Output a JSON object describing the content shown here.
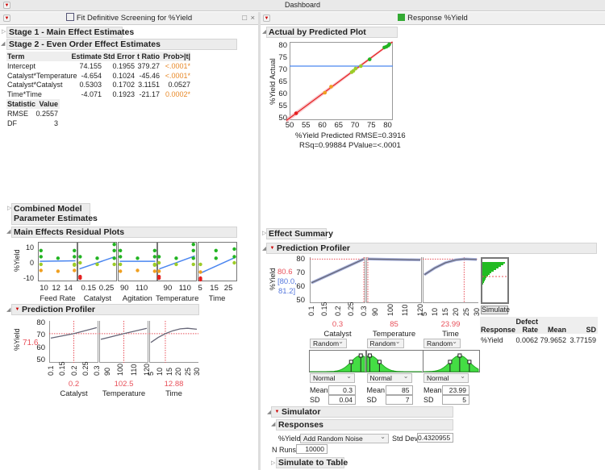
{
  "window": {
    "title": "Dashboard"
  },
  "left_pane": {
    "title": "Fit Definitive Screening for %Yield",
    "stage1": "Stage 1 - Main Effect Estimates",
    "stage2": "Stage 2 - Even Order Effect Estimates",
    "table": {
      "headers": [
        "Term",
        "Estimate",
        "Std Error",
        "t Ratio",
        "Prob>|t|"
      ],
      "rows": [
        {
          "term": "Intercept",
          "estimate": "74.155",
          "std_error": "0.1955",
          "t_ratio": "379.27",
          "prob": "<.0001*",
          "significant": true
        },
        {
          "term": "Catalyst*Temperature",
          "estimate": "-4.654",
          "std_error": "0.1024",
          "t_ratio": "-45.46",
          "prob": "<.0001*",
          "significant": true
        },
        {
          "term": "Catalyst*Catalyst",
          "estimate": "0.5303",
          "std_error": "0.1702",
          "t_ratio": "3.1151",
          "prob": "0.0527",
          "significant": false
        },
        {
          "term": "Time*Time",
          "estimate": "-4.071",
          "std_error": "0.1923",
          "t_ratio": "-21.17",
          "prob": "0.0002*",
          "significant": true
        }
      ]
    },
    "stats": {
      "headers": [
        "Statistic",
        "Value"
      ],
      "rows": [
        {
          "name": "RMSE",
          "value": "0.2557"
        },
        {
          "name": "DF",
          "value": "3"
        }
      ]
    },
    "combined_line1": "Combined Model",
    "combined_line2": "Parameter Estimates",
    "residual": {
      "title": "Main Effects Residual Plots",
      "ylabel": "%Yield",
      "yticks": [
        "10",
        "0",
        "-10"
      ],
      "panels": [
        {
          "name": "Feed Rate",
          "xticks": [
            "10",
            "12",
            "14"
          ]
        },
        {
          "name": "Catalyst",
          "xticks": [
            "0.15",
            "0.25"
          ]
        },
        {
          "name": "Agitation",
          "xticks": [
            "90",
            "110"
          ]
        },
        {
          "name": "Temperature",
          "xticks": [
            "90",
            "110"
          ]
        },
        {
          "name": "Time",
          "xticks": [
            "5",
            "15",
            "25"
          ]
        }
      ]
    },
    "profiler": {
      "title": "Prediction Profiler",
      "ylabel": "%Yield",
      "current_y": "71.6",
      "yticks": [
        "80",
        "70",
        "60",
        "50"
      ],
      "factors": [
        {
          "name": "Catalyst",
          "value": "0.2",
          "xticks": [
            "0.1",
            "0.15",
            "0.2",
            "0.25",
            "0.3"
          ]
        },
        {
          "name": "Temperature",
          "value": "102.5",
          "xticks": [
            "90",
            "100",
            "110",
            "120"
          ]
        },
        {
          "name": "Time",
          "value": "12.88",
          "xticks": [
            "5",
            "10",
            "15",
            "20",
            "25",
            "30"
          ]
        }
      ]
    }
  },
  "right_pane": {
    "title": "Response %Yield",
    "actual_by_predicted": {
      "title": "Actual by Predicted Plot",
      "ylabel": "%Yield Actual",
      "xlabel": "%Yield Predicted RMSE=0.3916",
      "stats": "RSq=0.99884 PValue=<.0001",
      "xticks": [
        "50",
        "55",
        "60",
        "65",
        "70",
        "75",
        "80"
      ],
      "yticks": [
        "80",
        "75",
        "70",
        "65",
        "60",
        "55",
        "50"
      ],
      "mean_line": 71.5
    },
    "effect_summary": "Effect Summary",
    "profiler": {
      "title": "Prediction Profiler",
      "ylabel": "%Yield",
      "current_y": "80.6",
      "ci": "[80.0,",
      "ci2": "81.2]",
      "yticks": [
        "80",
        "70",
        "60",
        "50"
      ],
      "simulate_button": "Simulate",
      "factors": [
        {
          "name": "Catalyst",
          "value": "0.3",
          "xticks": [
            "0.1",
            "0.15",
            "0.2",
            "0.25",
            "0.3"
          ],
          "dist_mode": "Random",
          "dist": "Normal",
          "mean": "0.3",
          "sd": "0.04"
        },
        {
          "name": "Temperature",
          "value": "85",
          "xticks": [
            "90",
            "100",
            "110",
            "120"
          ],
          "dist_mode": "Random",
          "dist": "Normal",
          "mean": "85",
          "sd": "7"
        },
        {
          "name": "Time",
          "value": "23.99",
          "xticks": [
            "5",
            "10",
            "15",
            "20",
            "25",
            "30"
          ],
          "dist_mode": "Random",
          "dist": "Normal",
          "mean": "23.99",
          "sd": "5"
        }
      ],
      "mean_label": "Mean",
      "sd_label": "SD",
      "sim_table": {
        "headers": [
          "Response",
          "Defect Rate",
          "Mean",
          "SD"
        ],
        "header_defect_top": "Defect",
        "header_defect_bottom": "Rate",
        "row": {
          "response": "%Yield",
          "defect_rate": "0.0062",
          "mean": "79.9652",
          "sd": "3.77159"
        }
      }
    },
    "simulator": {
      "title": "Simulator",
      "responses_title": "Responses",
      "response_label": "%Yield",
      "noise_option": "Add Random Noise",
      "std_dev_label": "Std Dev:",
      "std_dev": "0.4320955",
      "n_runs_label": "N Runs:",
      "n_runs": "10000",
      "simulate_to_table": "Simulate to Table"
    }
  },
  "colors": {
    "green": "#22b422",
    "yellowgreen": "#9ccc28",
    "orange": "#f0a020",
    "red": "#e52020",
    "fit_line": "#4a86f0",
    "ref_line": "#e8505a",
    "curve": "#666677",
    "band": "#f6b0b8",
    "sim_fill": "#44dd44"
  }
}
